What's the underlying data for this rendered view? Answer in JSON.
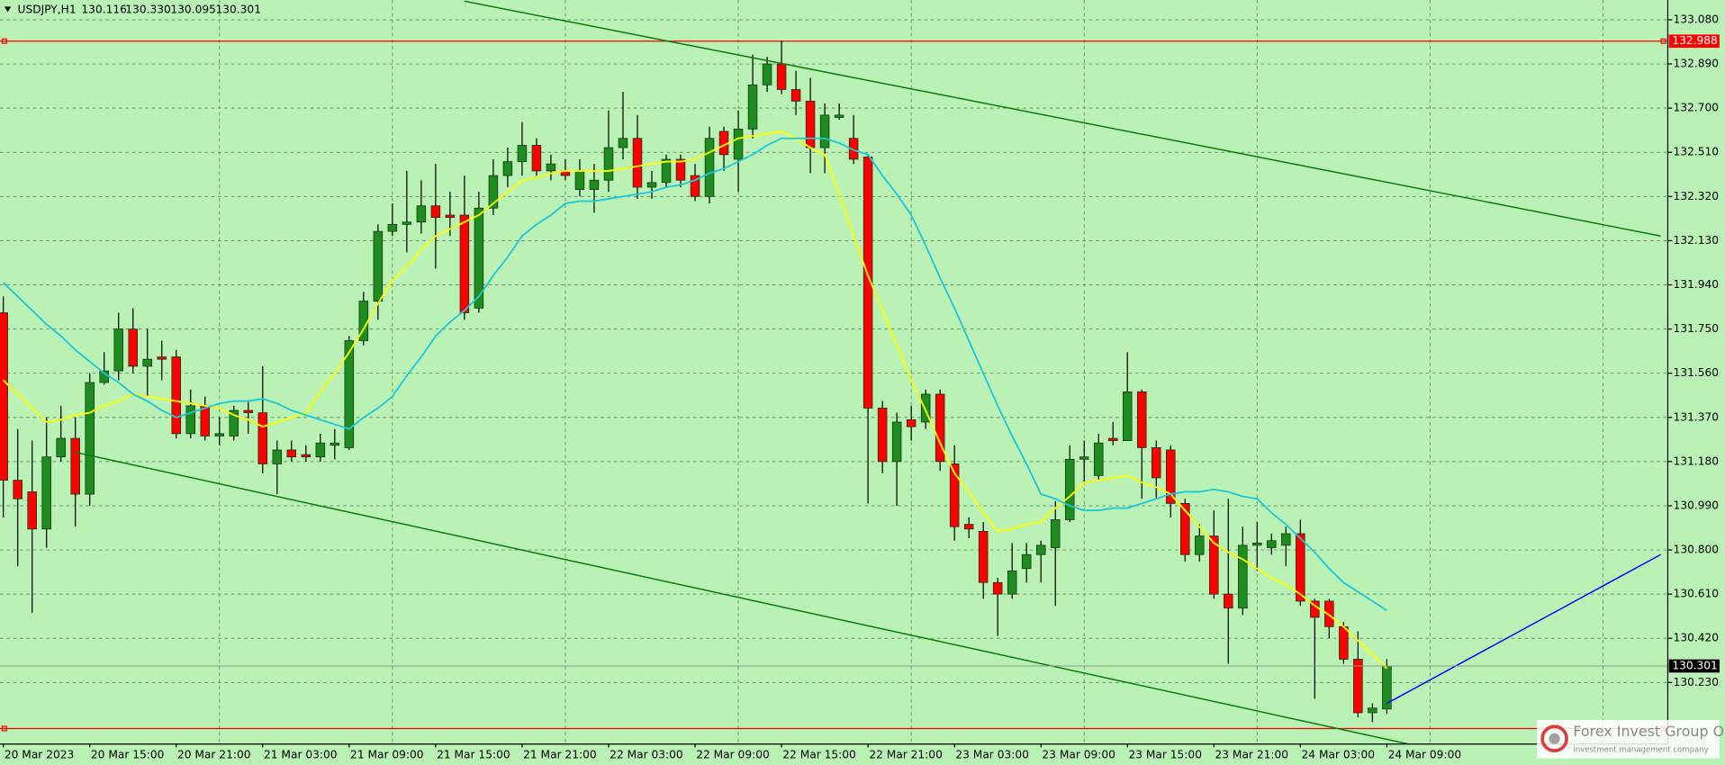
{
  "chart_data": {
    "type": "candlestick",
    "title": "USDJPY,H1",
    "quote": {
      "open": "130.116",
      "high": "130.330",
      "low": "130.095",
      "close": "130.301"
    },
    "categories": [
      "20 Mar 2023",
      null,
      null,
      null,
      null,
      null,
      "20 Mar 15:00",
      null,
      null,
      null,
      null,
      null,
      "20 Mar 21:00",
      null,
      null,
      null,
      null,
      null,
      "21 Mar 03:00",
      null,
      null,
      null,
      null,
      null,
      "21 Mar 09:00",
      null,
      null,
      null,
      null,
      null,
      "21 Mar 15:00",
      null,
      null,
      null,
      null,
      null,
      "21 Mar 21:00",
      null,
      null,
      null,
      null,
      null,
      "22 Mar 03:00",
      null,
      null,
      null,
      null,
      null,
      "22 Mar 09:00",
      null,
      null,
      null,
      null,
      null,
      "22 Mar 15:00",
      null,
      null,
      null,
      null,
      null,
      "22 Mar 21:00",
      null,
      null,
      null,
      null,
      null,
      "23 Mar 03:00",
      null,
      null,
      null,
      null,
      null,
      "23 Mar 09:00",
      null,
      null,
      null,
      null,
      null,
      "23 Mar 15:00",
      null,
      null,
      null,
      null,
      null,
      "23 Mar 21:00",
      null,
      null,
      null,
      null,
      null,
      "24 Mar 03:00",
      null,
      null,
      null,
      null,
      null,
      "24 Mar 09:00"
    ],
    "candles": {
      "up_color": "#1e8c1e",
      "down_color": "#ff0000",
      "open": [
        131.82,
        131.1,
        131.05,
        130.89,
        131.2,
        131.28,
        131.04,
        131.52,
        131.57,
        131.75,
        131.59,
        131.63,
        131.63,
        131.3,
        131.42,
        131.29,
        131.29,
        131.4,
        131.39,
        131.17,
        131.23,
        131.21,
        131.2,
        131.25,
        131.24,
        131.7,
        131.87,
        132.17,
        132.2,
        132.21,
        132.28,
        132.24,
        132.24,
        131.84,
        132.27,
        132.41,
        132.47,
        132.54,
        132.43,
        132.43,
        132.35,
        132.35,
        132.39,
        132.53,
        132.57,
        132.36,
        132.38,
        132.48,
        132.41,
        132.32,
        132.6,
        132.48,
        132.61,
        132.8,
        132.89,
        132.78,
        132.73,
        132.53,
        132.66,
        132.57,
        132.49,
        131.41,
        131.18,
        131.36,
        131.35,
        131.47,
        131.17,
        130.91,
        130.88,
        130.66,
        130.61,
        130.72,
        130.78,
        130.81,
        130.93,
        131.19,
        131.12,
        131.28,
        131.27,
        131.48,
        131.24,
        131.23,
        131.0,
        130.78,
        130.86,
        130.61,
        130.55,
        130.82,
        130.81,
        130.82,
        130.87,
        130.58,
        130.58,
        130.47,
        130.33,
        130.1,
        130.116
      ],
      "high": [
        131.89,
        131.32,
        131.27,
        131.37,
        131.42,
        131.37,
        131.56,
        131.65,
        131.82,
        131.84,
        131.75,
        131.7,
        131.66,
        131.49,
        131.46,
        131.37,
        131.42,
        131.44,
        131.59,
        131.27,
        131.27,
        131.25,
        131.3,
        131.32,
        131.72,
        131.91,
        132.2,
        132.29,
        132.43,
        132.39,
        132.46,
        132.34,
        132.41,
        132.34,
        132.48,
        132.53,
        132.64,
        132.57,
        132.5,
        132.48,
        132.48,
        132.46,
        132.69,
        132.77,
        132.67,
        132.43,
        132.5,
        132.5,
        132.46,
        132.62,
        132.62,
        132.69,
        132.93,
        132.92,
        132.99,
        132.86,
        132.83,
        132.72,
        132.72,
        132.67,
        132.5,
        131.44,
        131.39,
        131.42,
        131.49,
        131.49,
        131.25,
        130.94,
        130.92,
        130.68,
        130.83,
        130.83,
        130.84,
        131.01,
        131.25,
        131.27,
        131.3,
        131.35,
        131.65,
        131.49,
        131.27,
        131.25,
        131.02,
        130.91,
        130.97,
        131.02,
        130.9,
        130.92,
        130.87,
        130.9,
        130.93,
        130.59,
        130.59,
        130.49,
        130.45,
        130.14,
        130.33
      ],
      "low": [
        130.94,
        130.73,
        130.53,
        130.81,
        131.18,
        130.9,
        130.99,
        131.51,
        131.53,
        131.56,
        131.46,
        131.53,
        131.28,
        131.28,
        131.27,
        131.25,
        131.27,
        131.3,
        131.13,
        131.04,
        131.18,
        131.18,
        131.18,
        131.19,
        131.23,
        131.68,
        131.79,
        132.15,
        132.08,
        132.16,
        132.01,
        132.15,
        131.79,
        131.82,
        132.24,
        132.36,
        132.41,
        132.41,
        132.39,
        132.39,
        132.32,
        132.25,
        132.34,
        132.48,
        132.31,
        132.31,
        132.36,
        132.36,
        132.3,
        132.29,
        132.43,
        132.34,
        132.57,
        132.77,
        132.76,
        132.67,
        132.42,
        132.42,
        132.65,
        132.46,
        131.0,
        131.13,
        130.99,
        131.27,
        131.32,
        131.14,
        130.84,
        130.85,
        130.59,
        130.43,
        130.59,
        130.66,
        130.66,
        130.56,
        130.92,
        131.09,
        131.1,
        131.25,
        131.27,
        131.02,
        131.02,
        130.94,
        130.75,
        130.75,
        130.59,
        130.31,
        130.52,
        130.71,
        130.78,
        130.73,
        130.56,
        130.16,
        130.42,
        130.31,
        130.08,
        130.06,
        130.095
      ],
      "close": [
        131.1,
        131.02,
        130.89,
        131.2,
        131.28,
        131.04,
        131.52,
        131.57,
        131.75,
        131.59,
        131.62,
        131.62,
        131.3,
        131.42,
        131.29,
        131.3,
        131.4,
        131.39,
        131.17,
        131.23,
        131.2,
        131.2,
        131.26,
        131.26,
        131.7,
        131.87,
        132.17,
        132.2,
        132.21,
        132.28,
        132.23,
        132.23,
        131.82,
        132.27,
        132.41,
        132.47,
        132.54,
        132.43,
        132.46,
        132.41,
        132.43,
        132.39,
        132.53,
        132.57,
        132.36,
        132.38,
        132.48,
        132.39,
        132.32,
        132.57,
        132.5,
        132.61,
        132.8,
        132.89,
        132.78,
        132.73,
        132.53,
        132.67,
        132.67,
        132.48,
        131.41,
        131.18,
        131.35,
        131.33,
        131.47,
        131.18,
        130.9,
        130.89,
        130.66,
        130.61,
        130.71,
        130.78,
        130.82,
        130.93,
        131.19,
        131.2,
        131.26,
        131.27,
        131.48,
        131.24,
        131.11,
        131.0,
        130.78,
        130.86,
        130.61,
        130.55,
        130.82,
        130.83,
        130.84,
        130.87,
        130.58,
        130.51,
        130.47,
        130.33,
        130.1,
        130.12,
        130.301
      ]
    },
    "lines": [
      {
        "color": "#ffff00",
        "values": [
          131.53,
          131.47,
          131.41,
          131.35,
          131.36,
          131.38,
          131.39,
          131.42,
          131.44,
          131.47,
          131.46,
          131.45,
          131.44,
          131.43,
          131.42,
          131.41,
          131.38,
          131.36,
          131.33,
          131.35,
          131.37,
          131.39,
          131.48,
          131.56,
          131.65,
          131.75,
          131.86,
          131.96,
          132.02,
          132.09,
          132.15,
          132.18,
          132.21,
          132.24,
          132.29,
          132.34,
          132.39,
          132.4,
          132.42,
          132.43,
          132.43,
          132.43,
          132.43,
          132.44,
          132.45,
          132.46,
          132.47,
          132.47,
          132.48,
          132.51,
          132.54,
          132.57,
          132.58,
          132.59,
          132.6,
          132.57,
          132.53,
          132.5,
          132.33,
          132.15,
          131.98,
          131.83,
          131.68,
          131.53,
          131.4,
          131.26,
          131.13,
          131.05,
          130.96,
          130.88,
          130.89,
          130.91,
          130.92,
          130.98,
          131.03,
          131.09,
          131.1,
          131.11,
          131.12,
          131.09,
          131.07,
          131.04,
          130.97,
          130.9,
          130.83,
          130.79,
          130.76,
          130.72,
          130.68,
          130.65,
          130.61,
          130.56,
          130.52,
          130.47,
          130.41,
          130.35,
          130.29
        ]
      },
      {
        "color": "#1ec8d8",
        "values": [
          131.95,
          131.89,
          131.83,
          131.77,
          131.72,
          131.66,
          131.61,
          131.56,
          131.52,
          131.47,
          131.44,
          131.4,
          131.37,
          131.39,
          131.41,
          131.43,
          131.44,
          131.44,
          131.45,
          131.43,
          131.4,
          131.38,
          131.36,
          131.34,
          131.32,
          131.37,
          131.41,
          131.46,
          131.55,
          131.63,
          131.72,
          131.78,
          131.83,
          131.89,
          131.98,
          132.06,
          132.15,
          132.2,
          132.24,
          132.29,
          132.3,
          132.3,
          132.31,
          132.32,
          132.33,
          132.34,
          132.36,
          132.37,
          132.39,
          132.42,
          132.44,
          132.47,
          132.5,
          132.54,
          132.57,
          132.57,
          132.57,
          132.57,
          132.55,
          132.52,
          132.5,
          132.41,
          132.33,
          132.24,
          132.11,
          131.97,
          131.84,
          131.7,
          131.56,
          131.42,
          131.29,
          131.17,
          131.04,
          131.02,
          130.99,
          130.97,
          130.97,
          130.98,
          130.98,
          131.0,
          131.02,
          131.04,
          131.05,
          131.05,
          131.06,
          131.05,
          131.03,
          131.02,
          130.96,
          130.91,
          130.85,
          130.79,
          130.72,
          130.66,
          130.62,
          130.58,
          130.54
        ]
      }
    ],
    "trendlines": [
      {
        "color": "#0a780a",
        "x": [
          32,
          115
        ],
        "values": [
          133.16,
          132.15
        ]
      },
      {
        "color": "#0a780a",
        "x": [
          5,
          106
        ],
        "values": [
          131.22,
          129.85
        ]
      },
      {
        "color": "#0000ff",
        "x": [
          96,
          115
        ],
        "values": [
          130.14,
          130.78
        ]
      }
    ],
    "hlines": [
      {
        "color": "#ff0000",
        "value": 132.988
      },
      {
        "color": "#ff0000",
        "value": 130.032
      }
    ],
    "ylim": [
      129.965,
      133.165
    ],
    "yticks": [
      {
        "value": 133.08,
        "label": "133.080"
      },
      {
        "value": 132.89,
        "label": "132.890"
      },
      {
        "value": 132.7,
        "label": "132.700"
      },
      {
        "value": 132.51,
        "label": "132.510"
      },
      {
        "value": 132.32,
        "label": "132.320"
      },
      {
        "value": 132.13,
        "label": "132.130"
      },
      {
        "value": 131.94,
        "label": "131.940"
      },
      {
        "value": 131.75,
        "label": "131.750"
      },
      {
        "value": 131.56,
        "label": "131.560"
      },
      {
        "value": 131.37,
        "label": "131.370"
      },
      {
        "value": 131.18,
        "label": "131.180"
      },
      {
        "value": 130.99,
        "label": "130.990"
      },
      {
        "value": 130.8,
        "label": "130.800"
      },
      {
        "value": 130.61,
        "label": "130.610"
      },
      {
        "value": 130.42,
        "label": "130.420"
      },
      {
        "value": 130.23,
        "label": "130.230"
      }
    ],
    "grid": true,
    "background": "#b9f2b4",
    "watermark": {
      "title": "Forex Invest Group OU",
      "subtitle": "investment management company"
    }
  }
}
